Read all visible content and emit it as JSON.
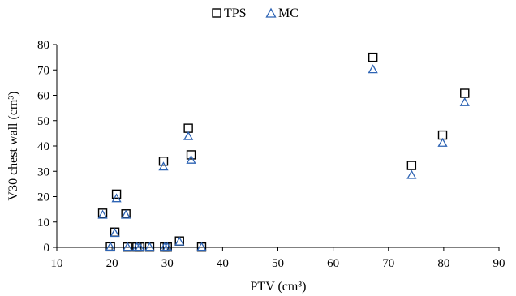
{
  "chart_data": {
    "type": "scatter",
    "title": "",
    "xlabel": "PTV (cm³)",
    "ylabel": "V30 chest wall (cm³)",
    "xlim": [
      10,
      90
    ],
    "ylim": [
      0,
      80
    ],
    "x_ticks": [
      10,
      20,
      30,
      40,
      50,
      60,
      70,
      80,
      90
    ],
    "y_ticks": [
      0,
      10,
      20,
      30,
      40,
      50,
      60,
      70,
      80
    ],
    "grid": false,
    "legend_position": "top-center",
    "series": [
      {
        "name": "TPS",
        "marker": "square",
        "color": "#000000",
        "points": [
          [
            18.3,
            13.5
          ],
          [
            19.7,
            0.2
          ],
          [
            20.5,
            6.0
          ],
          [
            20.8,
            21.0
          ],
          [
            22.5,
            13.2
          ],
          [
            22.8,
            0.1
          ],
          [
            24.5,
            0.1
          ],
          [
            25.0,
            0.1
          ],
          [
            26.8,
            0.1
          ],
          [
            29.3,
            34.0
          ],
          [
            29.5,
            0.1
          ],
          [
            30.0,
            0.1
          ],
          [
            32.2,
            2.5
          ],
          [
            33.8,
            47.0
          ],
          [
            34.3,
            36.5
          ],
          [
            36.2,
            0.1
          ],
          [
            67.2,
            75.0
          ],
          [
            74.2,
            32.3
          ],
          [
            79.8,
            44.3
          ],
          [
            83.8,
            60.8
          ]
        ]
      },
      {
        "name": "MC",
        "marker": "triangle",
        "color": "#2e64b4",
        "points": [
          [
            18.3,
            12.8
          ],
          [
            19.7,
            0.2
          ],
          [
            20.5,
            5.6
          ],
          [
            20.8,
            19.3
          ],
          [
            22.5,
            12.8
          ],
          [
            22.8,
            0.1
          ],
          [
            24.5,
            0.1
          ],
          [
            25.0,
            0.1
          ],
          [
            26.8,
            0.1
          ],
          [
            29.3,
            31.8
          ],
          [
            29.5,
            0.1
          ],
          [
            30.0,
            0.1
          ],
          [
            32.2,
            2.2
          ],
          [
            33.8,
            43.8
          ],
          [
            34.3,
            34.5
          ],
          [
            36.2,
            0.1
          ],
          [
            67.2,
            70.2
          ],
          [
            74.2,
            28.5
          ],
          [
            79.8,
            41.2
          ],
          [
            83.8,
            57.2
          ]
        ]
      }
    ]
  }
}
